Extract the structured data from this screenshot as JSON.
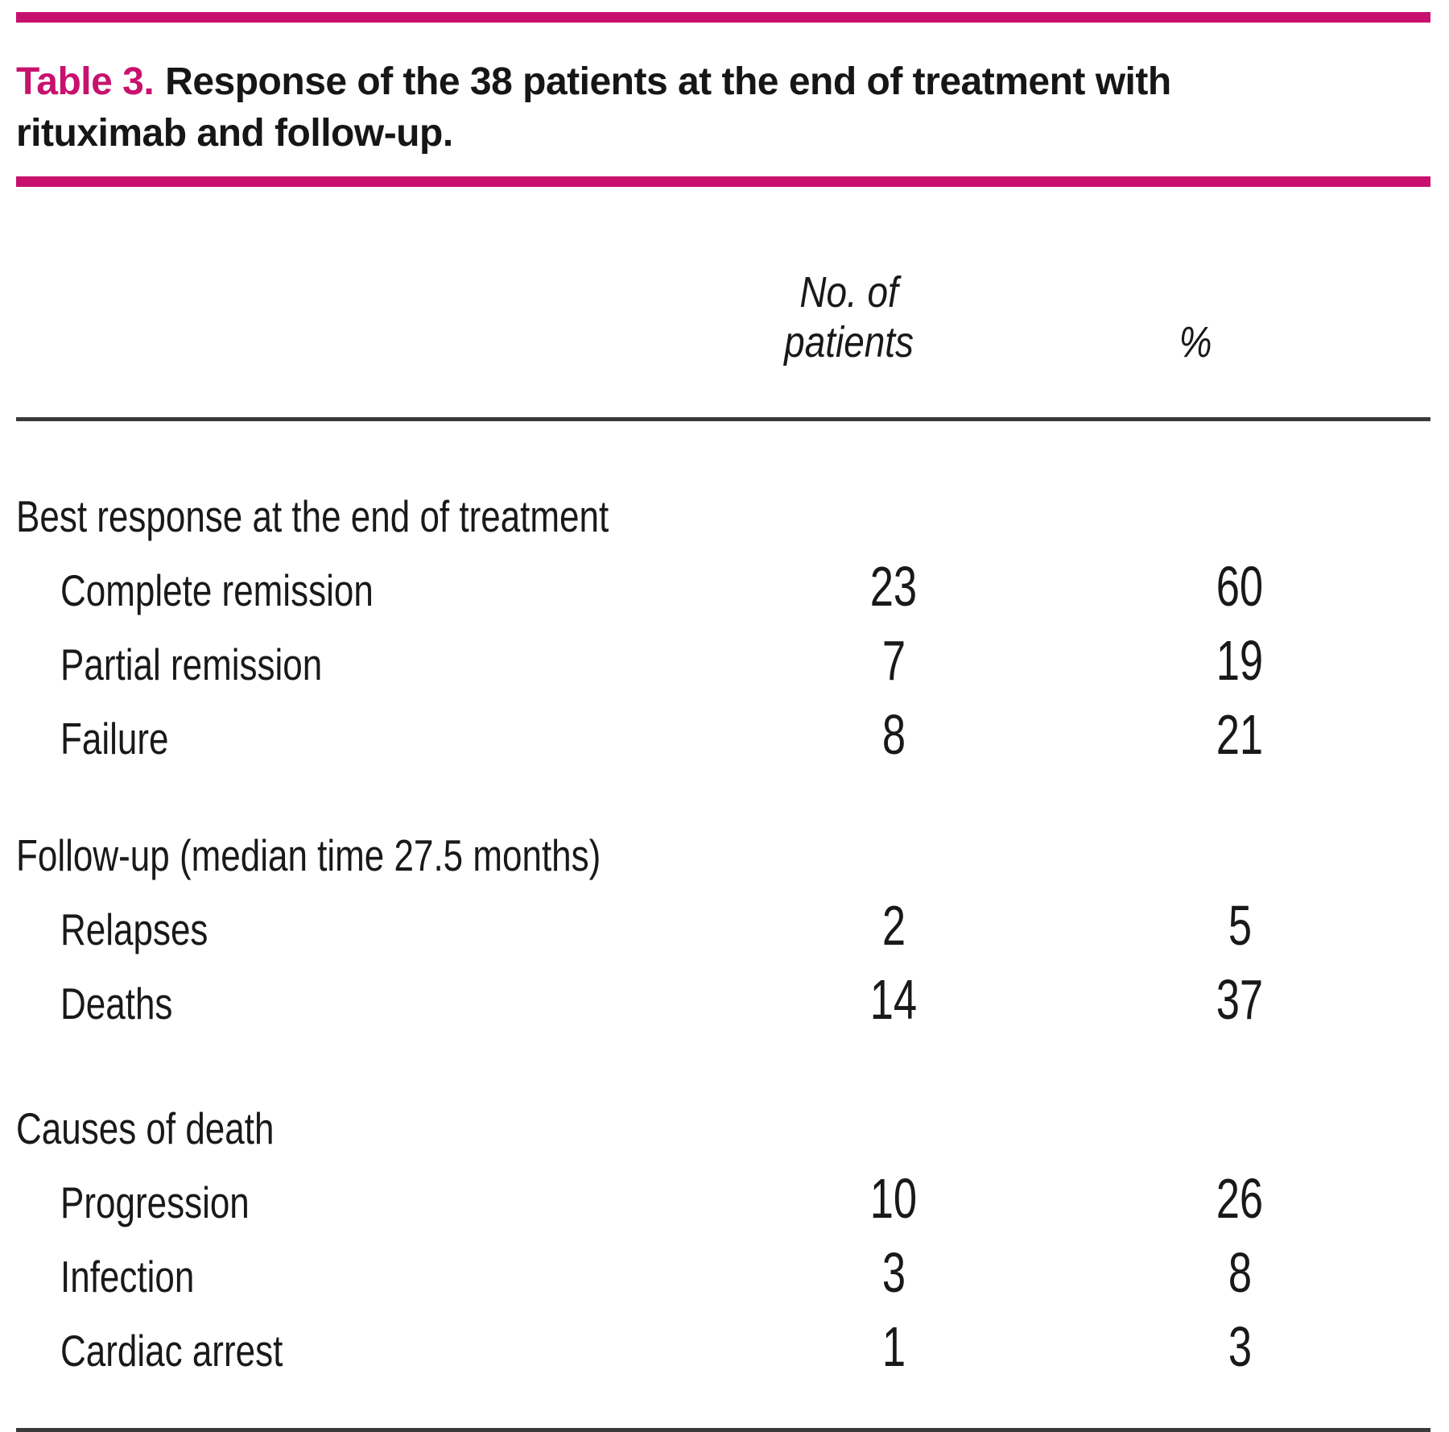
{
  "title": {
    "part1": "Table 3.",
    "part2": "Response of the 38 patients at the end of treatment with",
    "part3": "rituximab and follow-up."
  },
  "columns": {
    "patients_line1": "No. of",
    "patients_line2": "patients",
    "percent": "%"
  },
  "sections": [
    {
      "header": "Best response at the end of treatment",
      "rows": [
        {
          "label": "Complete remission",
          "n": "23",
          "pct": "60"
        },
        {
          "label": "Partial remission",
          "n": "7",
          "pct": "19"
        },
        {
          "label": "Failure",
          "n": "8",
          "pct": "21"
        }
      ]
    },
    {
      "header": "Follow-up (median time 27.5 months)",
      "rows": [
        {
          "label": "Relapses",
          "n": "2",
          "pct": "5"
        },
        {
          "label": "Deaths",
          "n": "14",
          "pct": "37"
        }
      ]
    },
    {
      "header": "Causes of death",
      "rows": [
        {
          "label": "Progression",
          "n": "10",
          "pct": "26"
        },
        {
          "label": "Infection",
          "n": "3",
          "pct": "8"
        },
        {
          "label": "Cardiac arrest",
          "n": "1",
          "pct": "3"
        }
      ]
    }
  ],
  "colors": {
    "accent": "#C8116E",
    "text": "#191919",
    "rule": "#3a3a3a"
  }
}
